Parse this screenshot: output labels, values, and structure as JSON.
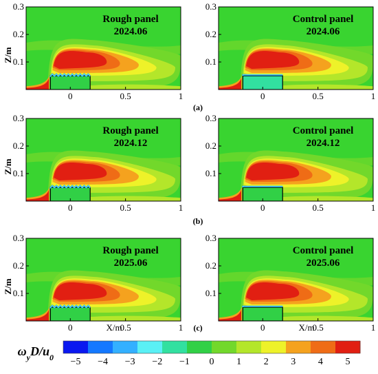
{
  "chart_data": {
    "type": "heatmap",
    "colors": {
      "background": "#39d430",
      "minus5": "#0a18f0",
      "minus4": "#1478ff",
      "minus3": "#33b0ff",
      "minus2": "#5af0f5",
      "minus1": "#32e0a0",
      "zero": "#31d046",
      "one": "#72d82b",
      "two": "#b4e62a",
      "three": "#eef229",
      "four": "#f5a21e",
      "five_low": "#ef6c16",
      "five": "#e11f12"
    },
    "colorbar": {
      "title": "ωyD/u0",
      "ticks": [
        "−5",
        "−4",
        "−3",
        "−2",
        "−1",
        "0",
        "1",
        "2",
        "3",
        "4",
        "5"
      ],
      "tick_values": [
        -5,
        -4,
        -3,
        -2,
        -1,
        0,
        1,
        2,
        3,
        4,
        5
      ]
    },
    "panels": [
      {
        "id": "a-left",
        "label": "Rough panel",
        "date": "2024.06",
        "row": "(a)",
        "ylabel": "Z/m",
        "xlabel": "",
        "ticks_x": [
          "0",
          "0.5",
          "1"
        ],
        "ticks_y": [
          "0.1",
          "0.2",
          "0.3"
        ]
      },
      {
        "id": "a-right",
        "label": "Control panel",
        "date": "2024.06",
        "row": "(a)",
        "ylabel": "",
        "xlabel": "",
        "ticks_x": [
          "0",
          "0.5",
          "1"
        ],
        "ticks_y": [
          "0.1",
          "0.2",
          "0.3"
        ]
      },
      {
        "id": "b-left",
        "label": "Rough panel",
        "date": "2024.12",
        "row": "(b)",
        "ylabel": "Z/m",
        "xlabel": "",
        "ticks_x": [
          "0",
          "0.5",
          "1"
        ],
        "ticks_y": [
          "0.1",
          "0.2",
          "0.3"
        ]
      },
      {
        "id": "b-right",
        "label": "Control panel",
        "date": "2024.12",
        "row": "(b)",
        "ylabel": "",
        "xlabel": "",
        "ticks_x": [
          "0",
          "0.5",
          "1"
        ],
        "ticks_y": [
          "0.1",
          "0.2",
          "0.3"
        ]
      },
      {
        "id": "c-left",
        "label": "Rough panel",
        "date": "2025.06",
        "row": "(c)",
        "ylabel": "Z/m",
        "xlabel": "X/m",
        "ticks_x": [
          "0",
          "0.5",
          "1"
        ],
        "ticks_y": [
          "0.1",
          "0.2",
          "0.3"
        ]
      },
      {
        "id": "c-right",
        "label": "Control panel",
        "date": "2025.06",
        "row": "(c)",
        "ylabel": "",
        "xlabel": "X/m",
        "ticks_x": [
          "0",
          "0.5",
          "1"
        ],
        "ticks_y": [
          "0.1",
          "0.2",
          "0.3"
        ]
      }
    ],
    "row_labels": [
      "(a)",
      "(b)",
      "(c)"
    ],
    "xlim": [
      -0.4,
      1.0
    ],
    "ylim": [
      0,
      0.3
    ],
    "panel_box": {
      "x": [
        -0.18,
        0.18
      ],
      "height": 0.05
    }
  }
}
